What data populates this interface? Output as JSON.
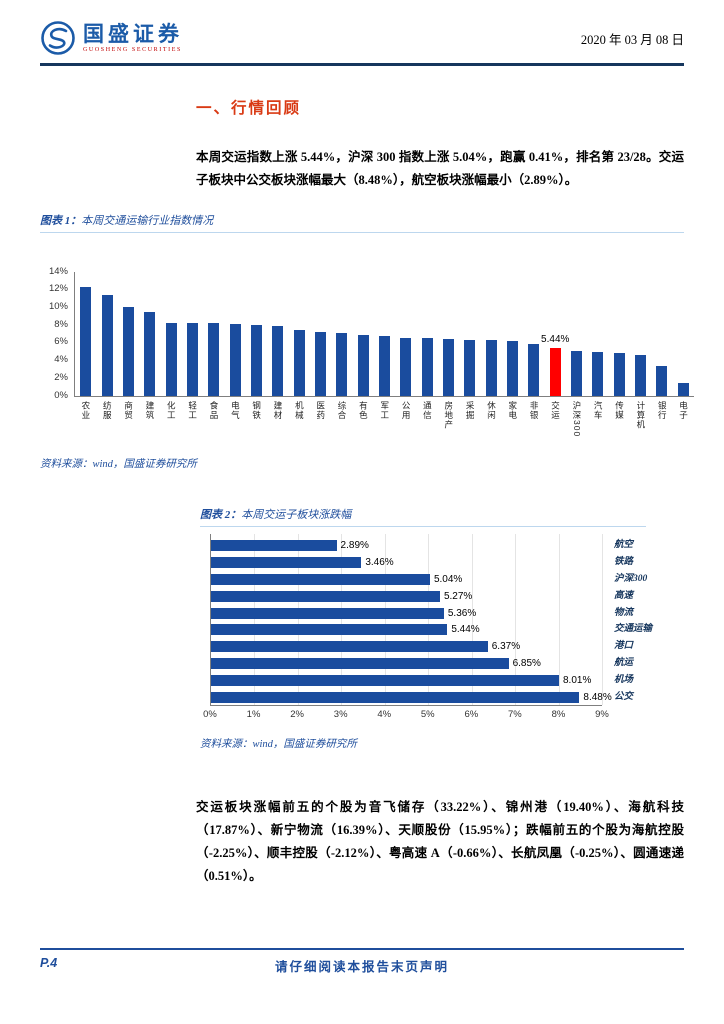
{
  "header": {
    "brand_name": "国盛证券",
    "brand_subtitle": "GUOSHENG SECURITIES",
    "date": "2020 年 03 月 08 日"
  },
  "section": {
    "title": "一、行情回顾"
  },
  "paragraphs": {
    "p1": "本周交运指数上涨 5.44%，沪深 300 指数上涨 5.04%，跑赢 0.41%，排名第 23/28。交运子板块中公交板块涨幅最大（8.48%），航空板块涨幅最小（2.89%）。",
    "p2": "交运板块涨幅前五的个股为音飞储存（33.22%）、锦州港（19.40%）、海航科技（17.87%）、新宁物流（16.39%）、天顺股份（15.95%）；跌幅前五的个股为海航控股（-2.25%）、顺丰控股（-2.12%）、粤高速 A（-0.66%）、长航凤凰（-0.25%）、圆通速递（0.51%）。"
  },
  "figure1": {
    "label": "图表 1：",
    "title": "本周交通运输行业指数情况",
    "source": "资料来源：wind，国盛证券研究所"
  },
  "figure2": {
    "label": "图表 2：",
    "title": "本周交运子板块涨跌幅",
    "source": "资料来源：wind，国盛证券研究所"
  },
  "footer": {
    "page": "P.4",
    "disclaimer": "请仔细阅读本报告末页声明"
  },
  "colors": {
    "accent_blue": "#1F4E9C",
    "header_navy": "#16365D",
    "section_red": "#D93A14",
    "bar_blue": "#1A4C9E",
    "highlight_red": "#FF0000"
  },
  "chart_data": [
    {
      "type": "bar",
      "title": "本周交通运输行业指数情况",
      "categories": [
        "农业",
        "纺服",
        "商贸",
        "建筑",
        "化工",
        "轻工",
        "食品",
        "电气",
        "钢铁",
        "建材",
        "机械",
        "医药",
        "综合",
        "有色",
        "军工",
        "公用",
        "通信",
        "房地产",
        "采掘",
        "休闲",
        "家电",
        "非银",
        "交运",
        "沪深300",
        "汽车",
        "传媒",
        "计算机",
        "银行",
        "电子"
      ],
      "values": [
        12.3,
        11.4,
        10.0,
        9.5,
        8.3,
        8.25,
        8.2,
        8.1,
        8.0,
        7.9,
        7.5,
        7.2,
        7.1,
        6.9,
        6.8,
        6.6,
        6.5,
        6.4,
        6.35,
        6.3,
        6.2,
        5.9,
        5.44,
        5.04,
        5.0,
        4.9,
        4.6,
        3.4,
        1.5
      ],
      "highlight_category": "交运",
      "highlight_value_label": "5.44%",
      "ylim": [
        0,
        14
      ],
      "yticks": [
        "0%",
        "2%",
        "4%",
        "6%",
        "8%",
        "10%",
        "12%",
        "14%"
      ],
      "bar_color": "#1A4C9E",
      "highlight_color": "#FF0000",
      "grid": false,
      "legend": false
    },
    {
      "type": "bar",
      "orientation": "horizontal",
      "title": "本周交运子板块涨跌幅",
      "categories": [
        "航空",
        "铁路",
        "沪深300",
        "高速",
        "物流",
        "交通运输",
        "港口",
        "航运",
        "机场",
        "公交"
      ],
      "values": [
        2.89,
        3.46,
        5.04,
        5.27,
        5.36,
        5.44,
        6.37,
        6.85,
        8.01,
        8.48
      ],
      "value_labels": [
        "2.89%",
        "3.46%",
        "5.04%",
        "5.27%",
        "5.36%",
        "5.44%",
        "6.37%",
        "6.85%",
        "8.01%",
        "8.48%"
      ],
      "xlim": [
        0,
        9
      ],
      "xticks": [
        "0%",
        "1%",
        "2%",
        "3%",
        "4%",
        "5%",
        "6%",
        "7%",
        "8%",
        "9%"
      ],
      "bar_color": "#1A4C9E",
      "grid": true,
      "legend": false
    }
  ]
}
